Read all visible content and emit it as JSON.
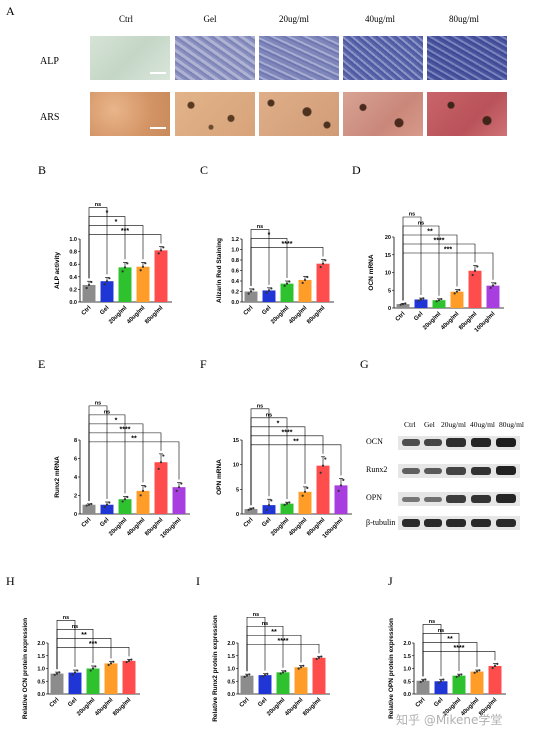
{
  "panel_a": {
    "letter": "A",
    "columns": [
      "Ctrl",
      "Gel",
      "20ug/ml",
      "40ug/ml",
      "80ug/ml"
    ],
    "rows": [
      "ALP",
      "ARS"
    ]
  },
  "panel_g": {
    "letter": "G",
    "columns": [
      "Ctrl",
      "Gel",
      "20ug/ml",
      "40ug/ml",
      "80ug/ml"
    ],
    "rows": [
      "OCN",
      "Runx2",
      "OPN",
      "β-tubulin"
    ]
  },
  "watermark": "知乎 @Mikene学堂",
  "chart_data": [
    {
      "letter": "B",
      "type": "bar",
      "ylabel": "ALP activity",
      "categories": [
        "Ctrl",
        "Gel",
        "20ug/ml",
        "40ug/ml",
        "80ug/ml"
      ],
      "values": [
        0.27,
        0.33,
        0.55,
        0.56,
        0.82
      ],
      "errors": [
        0.06,
        0.06,
        0.08,
        0.07,
        0.06
      ],
      "ylim": [
        0.0,
        1.0
      ],
      "yticks": [
        "0.0",
        "0.2",
        "0.4",
        "0.6",
        "0.8",
        "1.0"
      ],
      "colors": [
        "#8c8c8c",
        "#1f35d6",
        "#2ec22e",
        "#ff9d28",
        "#ff4d4d"
      ],
      "sig": [
        {
          "to": 1,
          "label": "ns"
        },
        {
          "to": 2,
          "label": "*"
        },
        {
          "to": 3,
          "label": "*"
        },
        {
          "to": 4,
          "label": "***"
        }
      ]
    },
    {
      "letter": "C",
      "type": "bar",
      "ylabel": "Alizarin Red Staining",
      "categories": [
        "Ctrl",
        "Gel",
        "20ug/ml",
        "40ug/ml",
        "80ug/ml"
      ],
      "values": [
        0.2,
        0.22,
        0.35,
        0.42,
        0.73
      ],
      "errors": [
        0.05,
        0.05,
        0.05,
        0.07,
        0.08
      ],
      "ylim": [
        0.0,
        1.2
      ],
      "yticks": [
        "0.0",
        "0.2",
        "0.4",
        "0.6",
        "0.8",
        "1.0",
        "1.2"
      ],
      "colors": [
        "#8c8c8c",
        "#1f35d6",
        "#2ec22e",
        "#ff9d28",
        "#ff4d4d"
      ],
      "sig": [
        {
          "to": 1,
          "label": "ns"
        },
        {
          "to": 2,
          "label": "*"
        },
        {
          "to": 4,
          "label": "****"
        }
      ]
    },
    {
      "letter": "D",
      "type": "bar",
      "ylabel": "OCN mRNA",
      "categories": [
        "Ctrl",
        "Gel",
        "20ug/ml",
        "40ug/ml",
        "80ug/ml",
        "100ug/ml"
      ],
      "values": [
        1.1,
        2.4,
        2.2,
        4.6,
        10.5,
        6.3
      ],
      "errors": [
        0.2,
        0.4,
        0.4,
        0.6,
        1.5,
        0.8
      ],
      "ylim": [
        0,
        20
      ],
      "yticks": [
        "0",
        "5",
        "10",
        "15",
        "20"
      ],
      "colors": [
        "#8c8c8c",
        "#1f35d6",
        "#2ec22e",
        "#ff9d28",
        "#ff4d4d",
        "#a83ee0"
      ],
      "sig": [
        {
          "to": 1,
          "label": "ns"
        },
        {
          "to": 2,
          "label": "ns"
        },
        {
          "to": 3,
          "label": "**"
        },
        {
          "to": 4,
          "label": "****"
        },
        {
          "to": 5,
          "label": "***"
        }
      ]
    },
    {
      "letter": "E",
      "type": "bar",
      "ylabel": "Runx2 mRNA",
      "categories": [
        "Ctrl",
        "Gel",
        "20ug/ml",
        "40ug/ml",
        "80ug/ml",
        "100ug/ml"
      ],
      "values": [
        1.0,
        1.0,
        1.6,
        2.5,
        5.6,
        2.9
      ],
      "errors": [
        0.1,
        0.3,
        0.3,
        0.6,
        0.9,
        0.5
      ],
      "ylim": [
        0,
        8
      ],
      "yticks": [
        "0",
        "2",
        "4",
        "6",
        "8"
      ],
      "colors": [
        "#8c8c8c",
        "#1f35d6",
        "#2ec22e",
        "#ff9d28",
        "#ff4d4d",
        "#a83ee0"
      ],
      "sig": [
        {
          "to": 1,
          "label": "ns"
        },
        {
          "to": 2,
          "label": "ns"
        },
        {
          "to": 3,
          "label": "*"
        },
        {
          "to": 4,
          "label": "****"
        },
        {
          "to": 5,
          "label": "**"
        }
      ]
    },
    {
      "letter": "F",
      "type": "bar",
      "ylabel": "OPN mRNA",
      "categories": [
        "Ctrl",
        "Gel",
        "20ug/ml",
        "40ug/ml",
        "80ug/ml",
        "100ug/ml"
      ],
      "values": [
        1.0,
        1.8,
        2.1,
        4.5,
        9.8,
        5.8
      ],
      "errors": [
        0.2,
        1.2,
        0.3,
        1.0,
        1.8,
        1.4
      ],
      "ylim": [
        0,
        15
      ],
      "yticks": [
        "0",
        "5",
        "10",
        "15"
      ],
      "colors": [
        "#8c8c8c",
        "#1f35d6",
        "#2ec22e",
        "#ff9d28",
        "#ff4d4d",
        "#a83ee0"
      ],
      "sig": [
        {
          "to": 1,
          "label": "ns"
        },
        {
          "to": 2,
          "label": "ns"
        },
        {
          "to": 3,
          "label": "*"
        },
        {
          "to": 4,
          "label": "****"
        },
        {
          "to": 5,
          "label": "**"
        }
      ]
    },
    {
      "letter": "H",
      "type": "bar",
      "ylabel": "Relative OCN protein expression",
      "categories": [
        "Ctrl",
        "Gel",
        "20ug/ml",
        "40ug/ml",
        "80ug/ml"
      ],
      "values": [
        0.8,
        0.84,
        1.0,
        1.2,
        1.3
      ],
      "errors": [
        0.06,
        0.1,
        0.1,
        0.08,
        0.06
      ],
      "ylim": [
        0.0,
        2.0
      ],
      "yticks": [
        "0.0",
        "0.5",
        "1.0",
        "1.5",
        "2.0"
      ],
      "colors": [
        "#8c8c8c",
        "#1f35d6",
        "#2ec22e",
        "#ff9d28",
        "#ff4d4d"
      ],
      "sig": [
        {
          "to": 1,
          "label": "ns"
        },
        {
          "to": 2,
          "label": "ns"
        },
        {
          "to": 3,
          "label": "**"
        },
        {
          "to": 4,
          "label": "***"
        }
      ]
    },
    {
      "letter": "I",
      "type": "bar",
      "ylabel": "Relative Runx2 protein expression",
      "categories": [
        "Ctrl",
        "Gel",
        "20ug/ml",
        "40ug/ml",
        "80ug/ml"
      ],
      "values": [
        0.72,
        0.74,
        0.85,
        1.05,
        1.42
      ],
      "errors": [
        0.06,
        0.06,
        0.06,
        0.07,
        0.06
      ],
      "ylim": [
        0.0,
        2.0
      ],
      "yticks": [
        "0.0",
        "0.5",
        "1.0",
        "1.5",
        "2.0"
      ],
      "colors": [
        "#8c8c8c",
        "#1f35d6",
        "#2ec22e",
        "#ff9d28",
        "#ff4d4d"
      ],
      "sig": [
        {
          "to": 1,
          "label": "ns"
        },
        {
          "to": 2,
          "label": "ns"
        },
        {
          "to": 3,
          "label": "**"
        },
        {
          "to": 4,
          "label": "****"
        }
      ]
    },
    {
      "letter": "J",
      "type": "bar",
      "ylabel": "Relative OPN protein expression",
      "categories": [
        "Ctrl",
        "Gel",
        "20ug/ml",
        "40ug/ml",
        "80ug/ml"
      ],
      "values": [
        0.52,
        0.5,
        0.72,
        0.88,
        1.1
      ],
      "errors": [
        0.06,
        0.08,
        0.06,
        0.06,
        0.1
      ],
      "ylim": [
        0.0,
        2.0
      ],
      "yticks": [
        "0.0",
        "0.5",
        "1.0",
        "1.5",
        "2.0"
      ],
      "colors": [
        "#8c8c8c",
        "#1f35d6",
        "#2ec22e",
        "#ff9d28",
        "#ff4d4d"
      ],
      "sig": [
        {
          "to": 1,
          "label": "ns"
        },
        {
          "to": 2,
          "label": "ns"
        },
        {
          "to": 3,
          "label": "**"
        },
        {
          "to": 4,
          "label": "****"
        }
      ]
    }
  ]
}
